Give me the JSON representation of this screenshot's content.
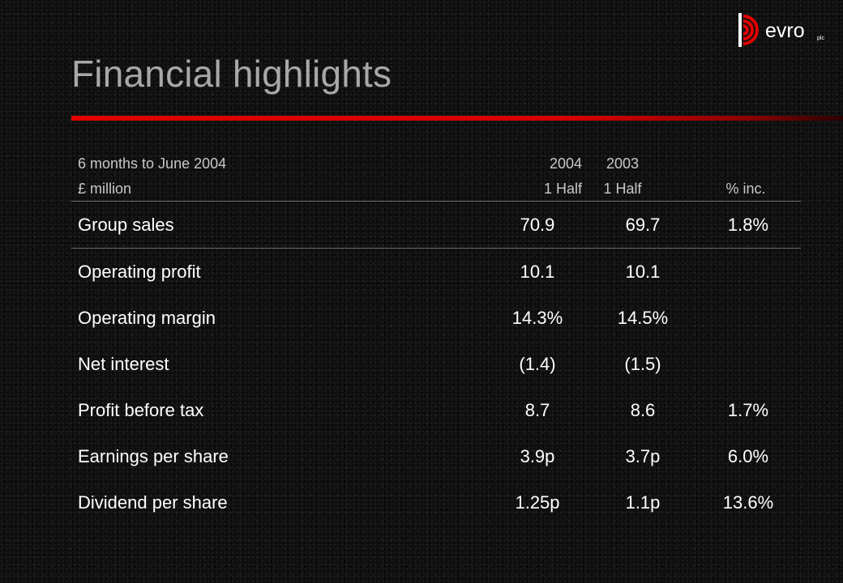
{
  "slide": {
    "title": "Financial highlights"
  },
  "logo": {
    "text": "evro",
    "suffix": "plc",
    "brand_color": "#e00000"
  },
  "colors": {
    "accent_bar": "#e00000",
    "title": "#a8a8a8",
    "header_text": "#c8c8c8",
    "body_text": "#ffffff",
    "background": "#0f0f0f"
  },
  "table": {
    "header": {
      "period": "6 months to June 2004",
      "unit": "£ million",
      "col_2004_year": "2004",
      "col_2004_period": "1 Half",
      "col_2003_year": "2003",
      "col_2003_period": "1 Half",
      "col_pct": "% inc."
    },
    "rows": [
      {
        "label": "Group sales",
        "v2004": "70.9",
        "v2003": "69.7",
        "pct": "1.8%"
      },
      {
        "label": "Operating profit",
        "v2004": "10.1",
        "v2003": "10.1",
        "pct": ""
      },
      {
        "label": "Operating margin",
        "v2004": "14.3%",
        "v2003": "14.5%",
        "pct": ""
      },
      {
        "label": "Net interest",
        "v2004": "(1.4)",
        "v2003": "(1.5)",
        "pct": ""
      },
      {
        "label": "Profit before tax",
        "v2004": "8.7",
        "v2003": "8.6",
        "pct": "1.7%"
      },
      {
        "label": "Earnings per share",
        "v2004": "3.9p",
        "v2003": "3.7p",
        "pct": "6.0%"
      },
      {
        "label": "Dividend per share",
        "v2004": "1.25p",
        "v2003": "1.1p",
        "pct": "13.6%"
      }
    ]
  }
}
